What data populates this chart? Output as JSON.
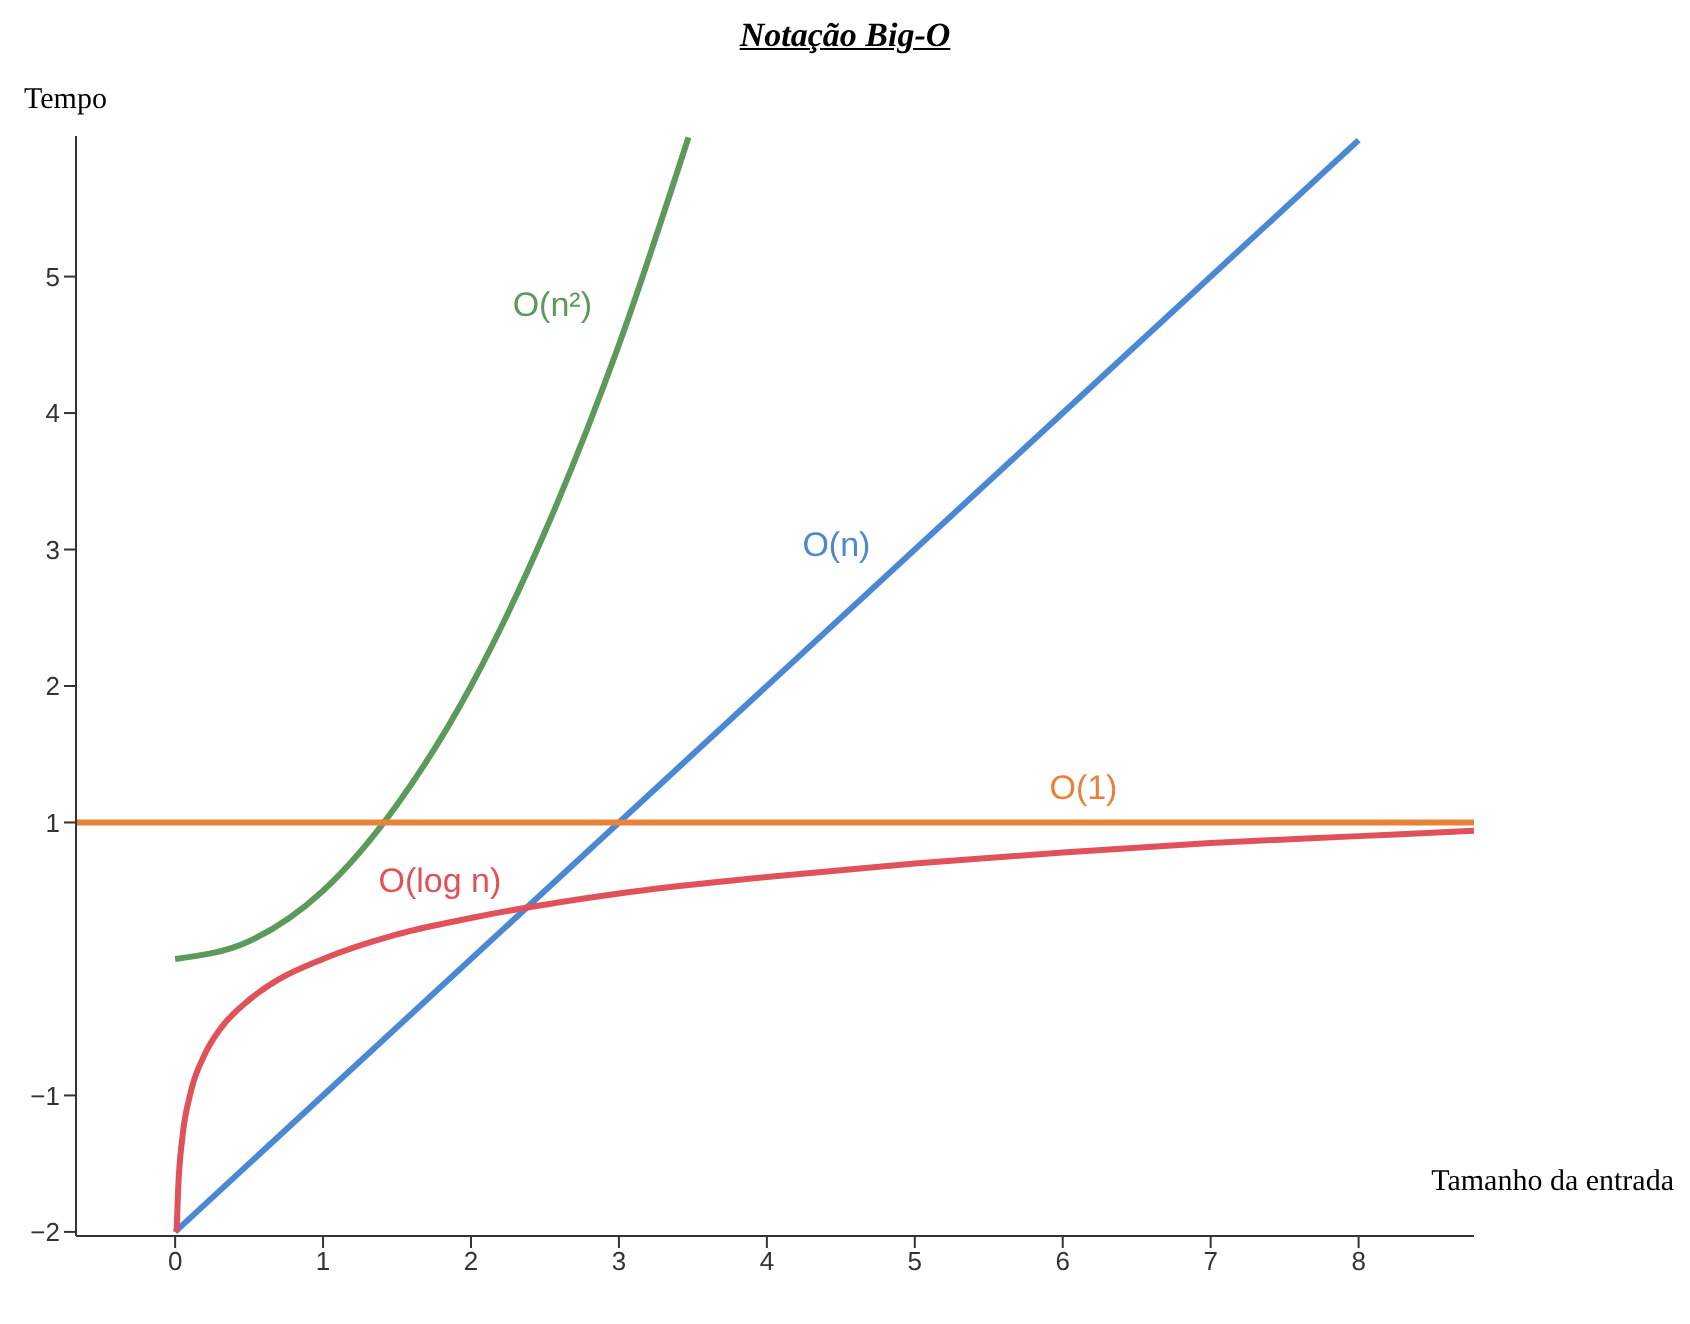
{
  "chart_data": {
    "type": "line",
    "title": "Notação Big-O",
    "xlabel": "Tamanho da entrada",
    "ylabel": "Tempo",
    "series": [
      {
        "name": "O(n²)",
        "color": "#5b9a5b",
        "x": [
          0,
          0.5,
          1,
          1.5,
          2,
          2.5,
          3,
          3.47
        ],
        "values": [
          0,
          0.13,
          0.5,
          1.13,
          2,
          3.13,
          4.5,
          6.02
        ]
      },
      {
        "name": "O(n)",
        "color": "#4a88d4",
        "x": [
          0,
          8
        ],
        "values": [
          -2,
          6
        ]
      },
      {
        "name": "O(1)",
        "color": "#e8823a",
        "x": [
          -0.67,
          8.78
        ],
        "values": [
          1,
          1
        ]
      },
      {
        "name": "O(log n)",
        "color": "#e0515a",
        "x": [
          0.01,
          0.02,
          0.05,
          0.1,
          0.2,
          0.3,
          0.5,
          0.7,
          1,
          1.5,
          2,
          3,
          4,
          5,
          6,
          7,
          8,
          8.78
        ],
        "values": [
          -2,
          -1.7,
          -1.3,
          -1,
          -0.7,
          -0.52,
          -0.3,
          -0.15,
          0,
          0.18,
          0.3,
          0.48,
          0.6,
          0.7,
          0.78,
          0.85,
          0.9,
          0.94
        ]
      }
    ],
    "xlim": [
      -0.67,
      8.78
    ],
    "ylim": [
      -2.03,
      6.03
    ],
    "xticks": [
      0,
      1,
      2,
      3,
      4,
      5,
      6,
      7,
      8
    ],
    "yticks": [
      {
        "value": -2,
        "label": "−2"
      },
      {
        "value": -1,
        "label": "−1"
      },
      1,
      2,
      3,
      4,
      5
    ],
    "grid": false,
    "legend": false,
    "marker": "none",
    "line_style": "solid"
  }
}
